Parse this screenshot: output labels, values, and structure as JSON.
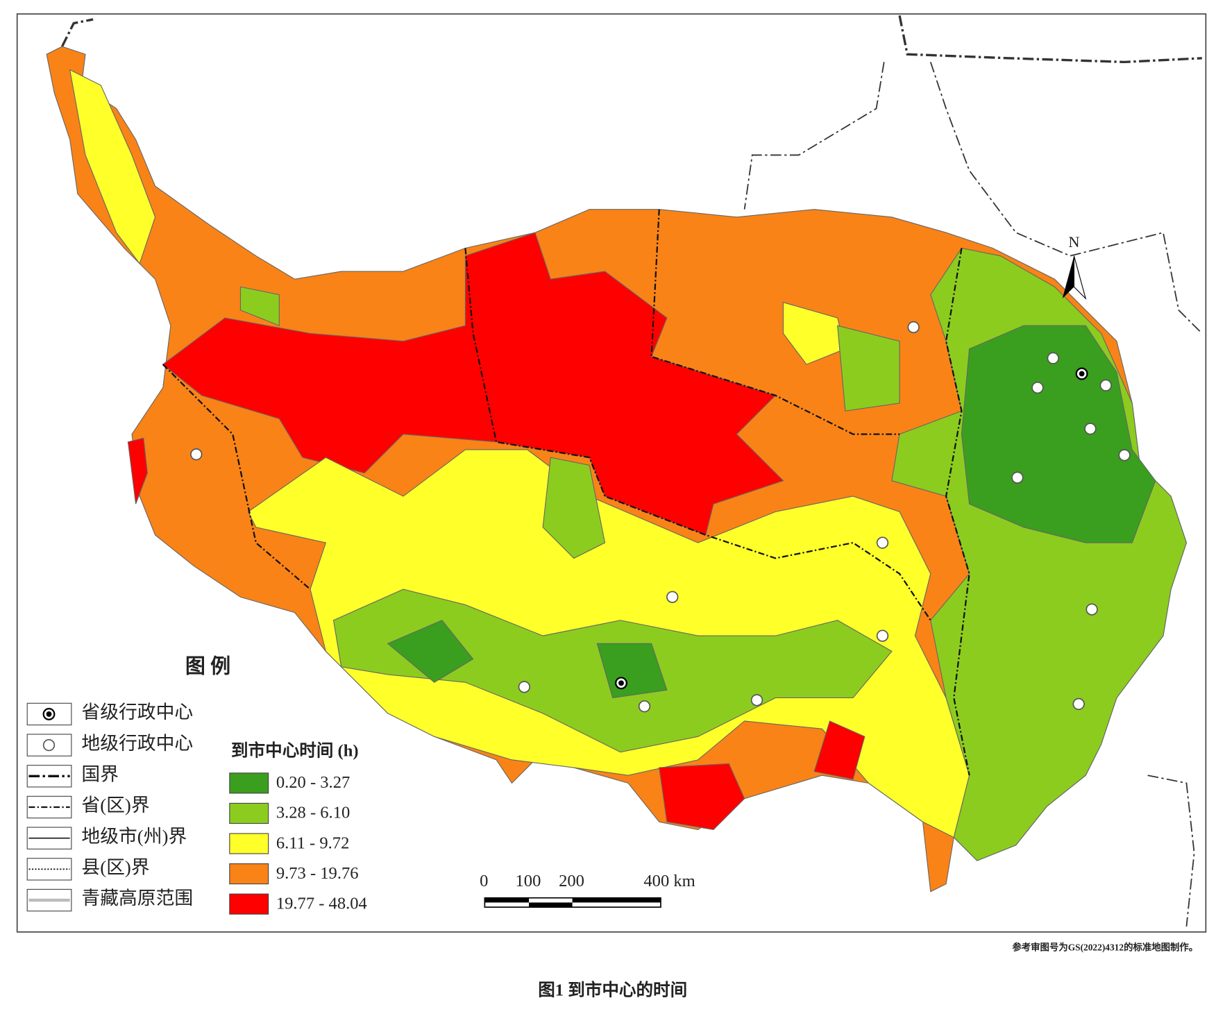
{
  "legend": {
    "title": "图 例",
    "items": [
      "省级行政中心",
      "地级行政中心",
      "国界",
      "省(区)界",
      "地级市(州)界",
      "县(区)界",
      "青藏高原范围"
    ]
  },
  "classes": {
    "title": "到市中心时间 (h)",
    "items": [
      {
        "label": "0.20 - 3.27",
        "color": "#3a9e1e"
      },
      {
        "label": "3.28 - 6.10",
        "color": "#8ccc1f"
      },
      {
        "label": "6.11 - 9.72",
        "color": "#ffff2a"
      },
      {
        "label": "9.73 - 19.76",
        "color": "#f98317"
      },
      {
        "label": "19.77 - 48.04",
        "color": "#ff0000"
      }
    ]
  },
  "scale_bar": [
    "0",
    "100",
    "200",
    "400 km"
  ],
  "north": "N",
  "note": "参考审图号为GS(2022)4312的标准地图制作。",
  "caption": "图1  到市中心的时间"
}
